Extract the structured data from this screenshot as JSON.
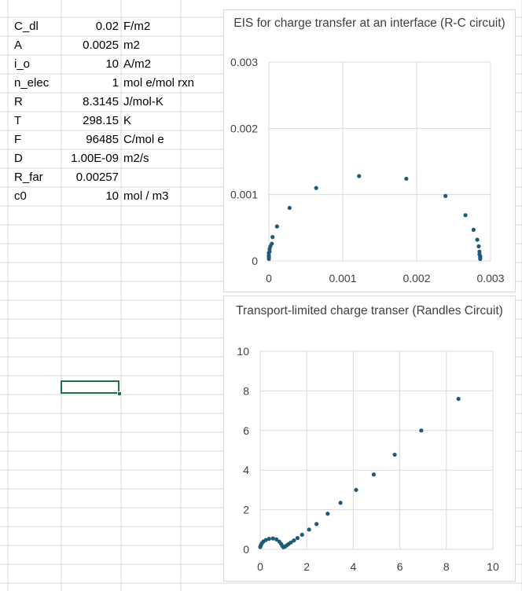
{
  "spreadsheet": {
    "rows": [
      {
        "label": "C_dl",
        "value": "0.02",
        "unit": "F/m2"
      },
      {
        "label": "A",
        "value": "0.0025",
        "unit": "m2"
      },
      {
        "label": "i_o",
        "value": "10",
        "unit": "A/m2"
      },
      {
        "label": "n_elec",
        "value": "1",
        "unit": "mol e/mol rxn"
      },
      {
        "label": "R",
        "value": "8.3145",
        "unit": "J/mol-K"
      },
      {
        "label": "T",
        "value": "298.15",
        "unit": "K"
      },
      {
        "label": "F",
        "value": "96485",
        "unit": "C/mol e"
      },
      {
        "label": "D",
        "value": "1.00E-09",
        "unit": "m2/s"
      },
      {
        "label": "R_far",
        "value": "0.00257",
        "unit": ""
      },
      {
        "label": "c0",
        "value": "10",
        "unit": "mol / m3"
      }
    ]
  },
  "colors": {
    "gridline": "#d9d9d9",
    "marker": "#1f5b78",
    "selection": "#217346"
  },
  "chart_data": [
    {
      "type": "scatter",
      "title": "EIS for charge transfer at an interface (R-C circuit)",
      "xlim": [
        0,
        0.003
      ],
      "ylim": [
        0,
        0.003
      ],
      "x_ticks": [
        "0",
        "0.001",
        "0.002",
        "0.003"
      ],
      "y_ticks": [
        "0",
        "0.001",
        "0.002",
        "0.003"
      ],
      "grid": true,
      "legend": "none",
      "points": [
        [
          0.0,
          3e-05
        ],
        [
          0.0,
          6e-05
        ],
        [
          0.0,
          8e-05
        ],
        [
          0.0,
          0.00012
        ],
        [
          1e-05,
          0.00014
        ],
        [
          1e-05,
          0.00018
        ],
        [
          2e-05,
          0.00022
        ],
        [
          4e-05,
          0.00026
        ],
        [
          5e-05,
          0.00036
        ],
        [
          0.00011,
          0.00052
        ],
        [
          0.00028,
          0.0008
        ],
        [
          0.00064,
          0.0011
        ],
        [
          0.00122,
          0.00128
        ],
        [
          0.00186,
          0.00124
        ],
        [
          0.00239,
          0.00098
        ],
        [
          0.00266,
          0.00069
        ],
        [
          0.00277,
          0.00047
        ],
        [
          0.00282,
          0.00032
        ],
        [
          0.00284,
          0.00022
        ],
        [
          0.00285,
          0.00014
        ],
        [
          0.00285,
          0.0001
        ],
        [
          0.00286,
          7e-05
        ],
        [
          0.00286,
          5e-05
        ],
        [
          0.00286,
          3e-05
        ]
      ]
    },
    {
      "type": "scatter",
      "title": "Transport-limited charge transer (Randles Circuit)",
      "xlim": [
        0,
        10
      ],
      "ylim": [
        0,
        10
      ],
      "x_ticks": [
        "0",
        "2",
        "4",
        "6",
        "8",
        "10"
      ],
      "y_ticks": [
        "0",
        "2",
        "4",
        "6",
        "8",
        "10"
      ],
      "grid": true,
      "legend": "none",
      "points": [
        [
          0.0,
          0.12
        ],
        [
          0.02,
          0.18
        ],
        [
          0.04,
          0.24
        ],
        [
          0.08,
          0.32
        ],
        [
          0.14,
          0.4
        ],
        [
          0.24,
          0.47
        ],
        [
          0.38,
          0.53
        ],
        [
          0.55,
          0.55
        ],
        [
          0.7,
          0.5
        ],
        [
          0.82,
          0.39
        ],
        [
          0.9,
          0.27
        ],
        [
          0.95,
          0.17
        ],
        [
          1.0,
          0.11
        ],
        [
          1.07,
          0.14
        ],
        [
          1.14,
          0.2
        ],
        [
          1.22,
          0.27
        ],
        [
          1.32,
          0.35
        ],
        [
          1.45,
          0.45
        ],
        [
          1.6,
          0.57
        ],
        [
          1.8,
          0.74
        ],
        [
          2.1,
          1.0
        ],
        [
          2.42,
          1.28
        ],
        [
          2.9,
          1.8
        ],
        [
          3.45,
          2.35
        ],
        [
          4.12,
          3.0
        ],
        [
          4.88,
          3.78
        ],
        [
          5.78,
          4.78
        ],
        [
          6.92,
          6.0
        ],
        [
          8.52,
          7.6
        ]
      ]
    }
  ]
}
